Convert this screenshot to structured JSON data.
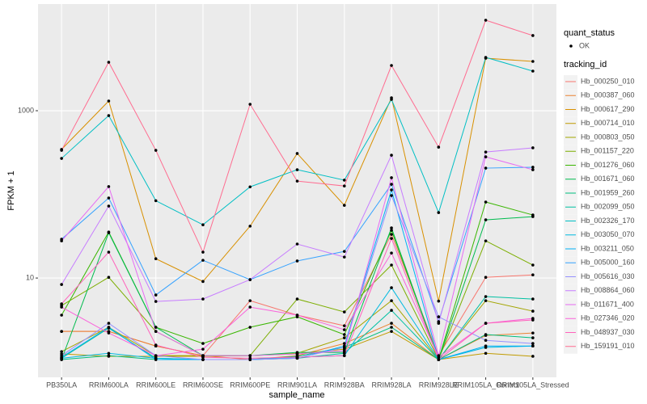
{
  "chart_data": {
    "type": "line",
    "log_y": true,
    "grid": true,
    "x_label": "sample_name",
    "y_label": "FPKM + 1",
    "categories": [
      "PB350LA",
      "RRIM600LA",
      "RRIM600LE",
      "RRIM600SE",
      "RRIM600PE",
      "RRIM901LA",
      "RRIM928BA",
      "RRIM928LA",
      "RRIM928LE",
      "RRIM105LA_Control",
      "RRIM105LA_Stressed"
    ],
    "ylim": [
      0.65,
      18840
    ],
    "yticks": [
      10,
      1000
    ],
    "legend": {
      "status_title": "quant_status",
      "status_items": [
        "OK"
      ],
      "title": "tracking_id"
    },
    "point_color": "#000000",
    "series": [
      {
        "name": "Hb_000250_010",
        "color": "#F8766D",
        "values": [
          2.3,
          2.3,
          1.54,
          1.18,
          5.36,
          3.6,
          2.69,
          33.2,
          1.18,
          10.2,
          10.9
        ]
      },
      {
        "name": "Hb_000387_060",
        "color": "#EA8331",
        "values": [
          2.3,
          2.3,
          1.54,
          1.18,
          1.06,
          1.18,
          1.65,
          2.88,
          1.06,
          2.06,
          2.2
        ]
      },
      {
        "name": "Hb_000617_290",
        "color": "#D89000",
        "values": [
          345,
          1306,
          17,
          9.1,
          41.7,
          308,
          74,
          1428,
          5.3,
          4245,
          3884
        ]
      },
      {
        "name": "Hb_000714_010",
        "color": "#C09B00",
        "values": [
          1.24,
          1.16,
          1.16,
          1.16,
          1.18,
          1.24,
          1.41,
          2.3,
          1.06,
          1.26,
          1.16
        ]
      },
      {
        "name": "Hb_000803_050",
        "color": "#A3A500",
        "values": [
          1.32,
          2.58,
          1.18,
          1.18,
          1.18,
          1.26,
          1.93,
          5.36,
          1.06,
          5.36,
          4.02
        ]
      },
      {
        "name": "Hb_001157_220",
        "color": "#7CAE00",
        "values": [
          4.69,
          10.2,
          2.3,
          1.18,
          1.18,
          5.61,
          3.93,
          14.3,
          1.06,
          27.8,
          14.3
        ]
      },
      {
        "name": "Hb_001276_060",
        "color": "#39B600",
        "values": [
          3.6,
          35.5,
          2.58,
          1.65,
          2.58,
          3.44,
          2.11,
          37.2,
          1.06,
          81.0,
          56.7
        ]
      },
      {
        "name": "Hb_001671_060",
        "color": "#00BB4E",
        "values": [
          1.06,
          34.8,
          2.58,
          1.18,
          1.18,
          1.29,
          1.29,
          39.7,
          1.06,
          49.6,
          54.2
        ]
      },
      {
        "name": "Hb_001959_260",
        "color": "#00BF7D",
        "values": [
          1.06,
          1.18,
          1.06,
          1.06,
          1.06,
          1.16,
          1.48,
          2.58,
          1.06,
          2.11,
          1.93
        ]
      },
      {
        "name": "Hb_002099_050",
        "color": "#00C1A3",
        "values": [
          1.1,
          2.52,
          1.1,
          1.06,
          1.06,
          1.1,
          1.26,
          4.11,
          1.06,
          6.0,
          5.61
        ]
      },
      {
        "name": "Hb_002326_170",
        "color": "#00BFC4",
        "values": [
          269,
          875,
          84,
          43.3,
          123,
          197,
          148,
          1366,
          60.6,
          4340,
          2975
        ]
      },
      {
        "name": "Hb_003050_070",
        "color": "#00BAE0",
        "values": [
          1.1,
          1.26,
          1.1,
          1.06,
          1.06,
          1.13,
          1.18,
          7.66,
          1.06,
          1.48,
          1.54
        ]
      },
      {
        "name": "Hb_003211_050",
        "color": "#00B0F6",
        "values": [
          1.13,
          2.58,
          1.06,
          1.06,
          1.06,
          1.1,
          1.54,
          113,
          1.06,
          1.54,
          1.54
        ]
      },
      {
        "name": "Hb_005000_160",
        "color": "#35A2FF",
        "values": [
          29.1,
          90.5,
          6.27,
          16.3,
          9.57,
          16.0,
          20.8,
          132,
          3.01,
          206,
          211
        ]
      },
      {
        "name": "Hb_005616_030",
        "color": "#9590FF",
        "values": [
          1.18,
          2.88,
          1.18,
          1.06,
          1.06,
          1.1,
          1.48,
          96.8,
          3.44,
          1.8,
          1.65
        ]
      },
      {
        "name": "Hb_008864_060",
        "color": "#C77CFF",
        "values": [
          8.37,
          72.5,
          5.25,
          5.61,
          9.57,
          25.5,
          17.8,
          294,
          2.88,
          321,
          360
        ]
      },
      {
        "name": "Hb_011671_400",
        "color": "#E76BF3",
        "values": [
          27.8,
          124,
          2.3,
          1.18,
          1.18,
          1.24,
          1.35,
          158,
          1.18,
          281,
          197
        ]
      },
      {
        "name": "Hb_027346_020",
        "color": "#FA62DB",
        "values": [
          4.49,
          2.2,
          1.18,
          1.41,
          4.49,
          3.6,
          2.41,
          19.9,
          1.13,
          2.88,
          3.29
        ]
      },
      {
        "name": "Hb_048937_030",
        "color": "#FF62BC",
        "values": [
          4.91,
          20.4,
          1.58,
          1.13,
          1.1,
          1.13,
          1.18,
          29.7,
          1.06,
          2.88,
          3.15
        ]
      },
      {
        "name": "Hb_159191_010",
        "color": "#FF6C90",
        "values": [
          336,
          3800,
          336,
          20.4,
          1195,
          144,
          126,
          3475,
          367,
          12060,
          7920
        ]
      }
    ]
  }
}
